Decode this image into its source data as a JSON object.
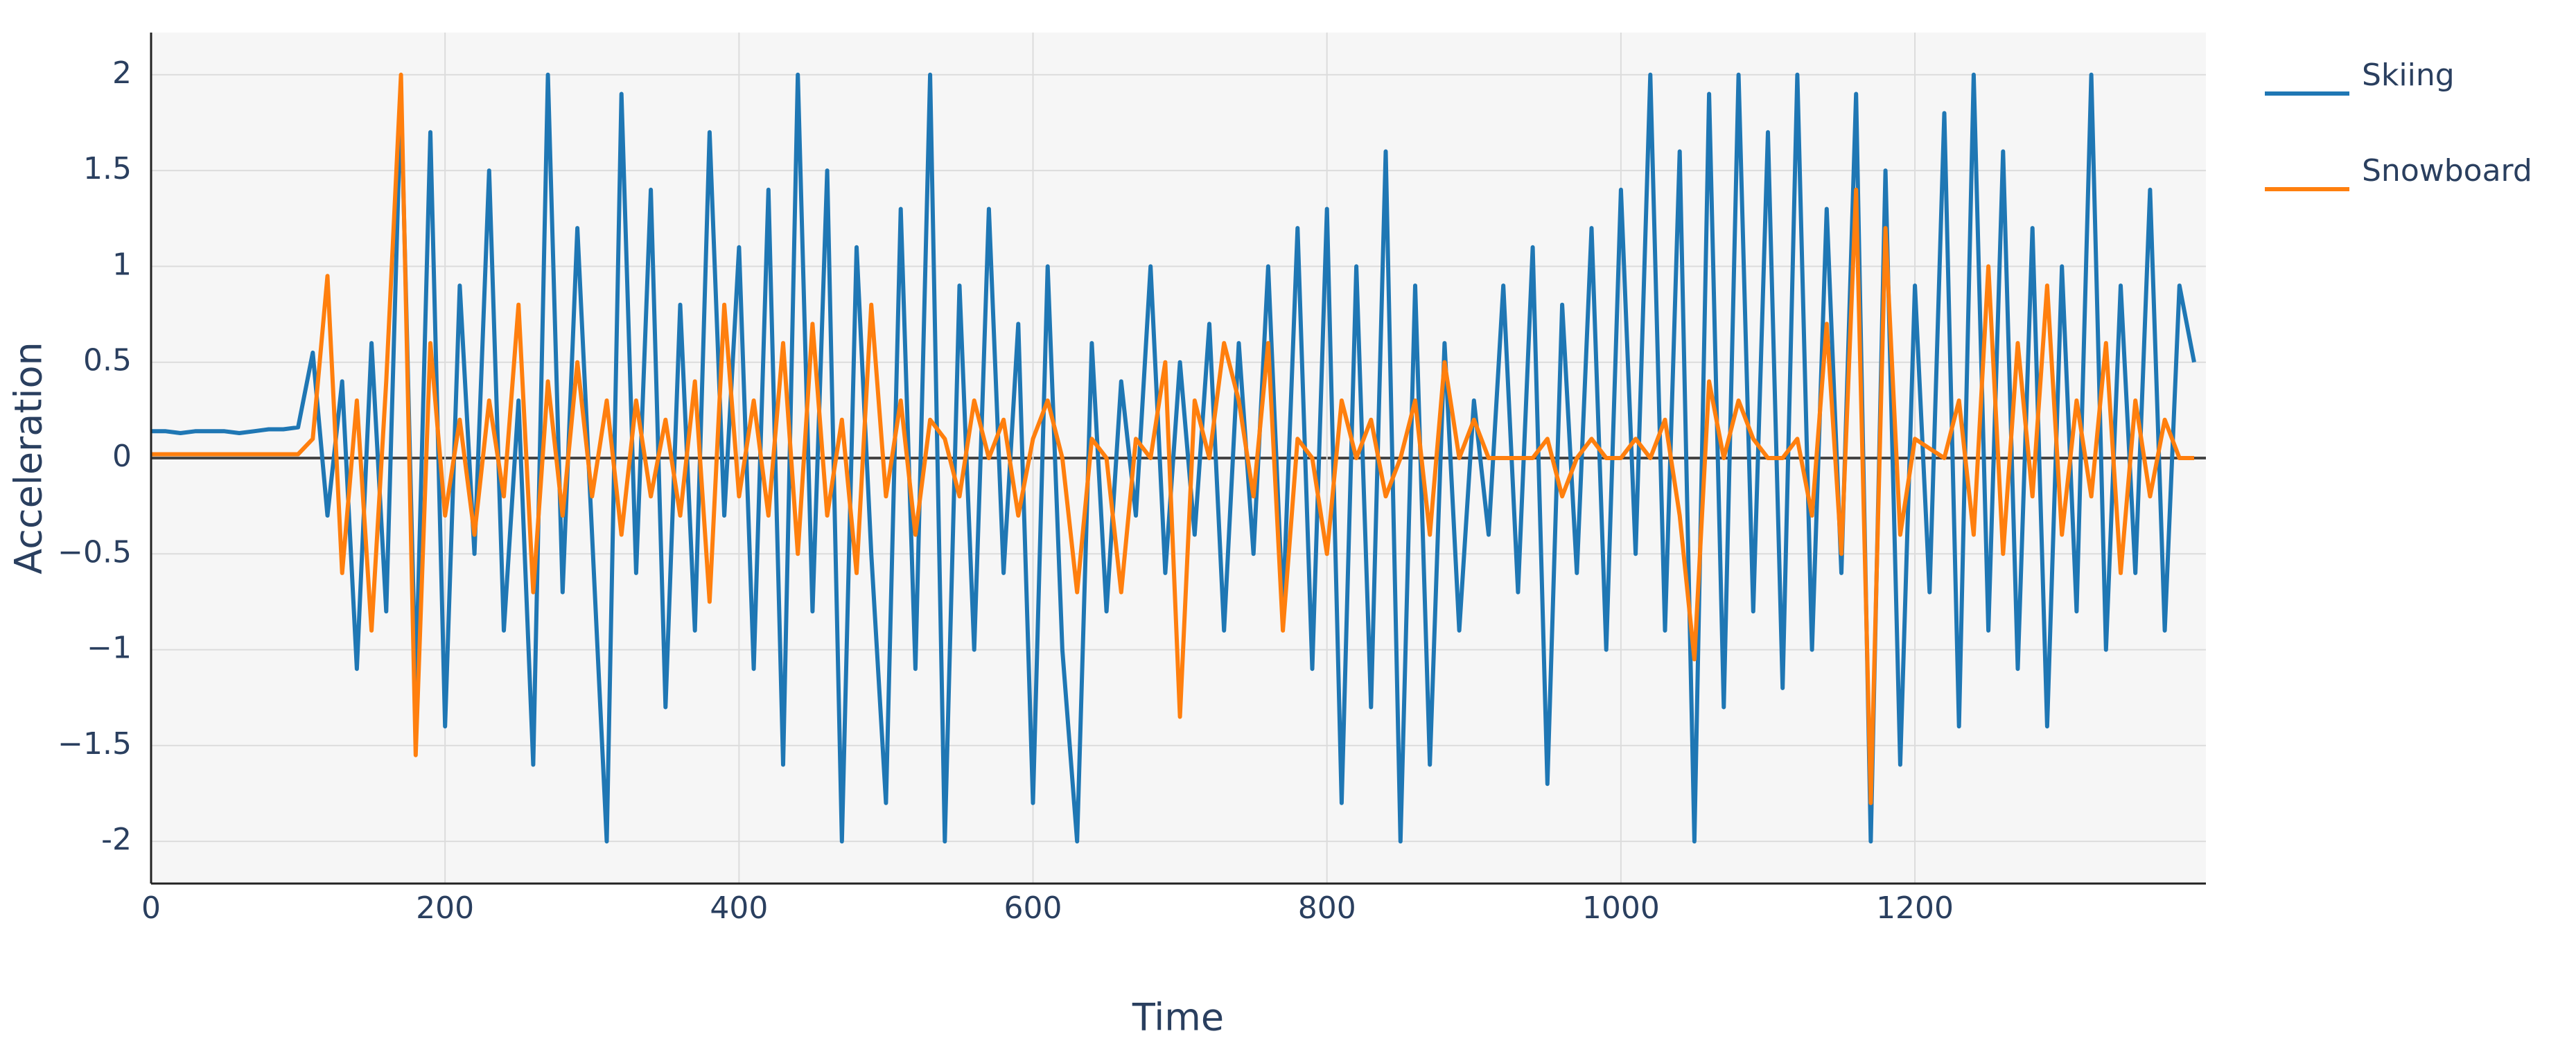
{
  "chart_data": {
    "type": "line",
    "x_label": "Time",
    "y_label": "Acceleration",
    "x": [
      0,
      10,
      20,
      30,
      40,
      50,
      60,
      70,
      80,
      90,
      100,
      110,
      120,
      130,
      140,
      150,
      160,
      170,
      180,
      190,
      200,
      210,
      220,
      230,
      240,
      250,
      260,
      270,
      280,
      290,
      300,
      310,
      320,
      330,
      340,
      350,
      360,
      370,
      380,
      390,
      400,
      410,
      420,
      430,
      440,
      450,
      460,
      470,
      480,
      490,
      500,
      510,
      520,
      530,
      540,
      550,
      560,
      570,
      580,
      590,
      600,
      610,
      620,
      630,
      640,
      650,
      660,
      670,
      680,
      690,
      700,
      710,
      720,
      730,
      740,
      750,
      760,
      770,
      780,
      790,
      800,
      810,
      820,
      830,
      840,
      850,
      860,
      870,
      880,
      890,
      900,
      910,
      920,
      930,
      940,
      950,
      960,
      970,
      980,
      990,
      1000,
      1010,
      1020,
      1030,
      1040,
      1050,
      1060,
      1070,
      1080,
      1090,
      1100,
      1110,
      1120,
      1130,
      1140,
      1150,
      1160,
      1170,
      1180,
      1190,
      1200,
      1210,
      1220,
      1230,
      1240,
      1250,
      1260,
      1270,
      1280,
      1290,
      1300,
      1310,
      1320,
      1330,
      1340,
      1350,
      1360,
      1370,
      1380,
      1390
    ],
    "series": [
      {
        "name": "Skiing",
        "color": "#1f77b4",
        "values": [
          0.14,
          0.14,
          0.13,
          0.14,
          0.14,
          0.14,
          0.13,
          0.14,
          0.15,
          0.15,
          0.16,
          0.55,
          -0.3,
          0.4,
          -1.1,
          0.6,
          -0.8,
          1.9,
          -1.2,
          1.7,
          -1.4,
          0.9,
          -0.5,
          1.5,
          -0.9,
          0.3,
          -1.6,
          2,
          -0.7,
          1.2,
          -0.4,
          -2,
          1.9,
          -0.6,
          1.4,
          -1.3,
          0.8,
          -0.9,
          1.7,
          -0.3,
          1.1,
          -1.1,
          1.4,
          -1.6,
          2,
          -0.8,
          1.5,
          -2,
          1.1,
          -0.5,
          -1.8,
          1.3,
          -1.1,
          2,
          -2,
          0.9,
          -1,
          1.3,
          -0.6,
          0.7,
          -1.8,
          1,
          -1,
          -2,
          0.6,
          -0.8,
          0.4,
          -0.3,
          1,
          -0.6,
          0.5,
          -0.4,
          0.7,
          -0.9,
          0.6,
          -0.5,
          1,
          -0.8,
          1.2,
          -1.1,
          1.3,
          -1.8,
          1,
          -1.3,
          1.6,
          -2,
          0.9,
          -1.6,
          0.6,
          -0.9,
          0.3,
          -0.4,
          0.9,
          -0.7,
          1.1,
          -1.7,
          0.8,
          -0.6,
          1.2,
          -1,
          1.4,
          -0.5,
          2,
          -0.9,
          1.6,
          -2,
          1.9,
          -1.3,
          2,
          -0.8,
          1.7,
          -1.2,
          2,
          -1,
          1.3,
          -0.6,
          1.9,
          -2,
          1.5,
          -1.6,
          0.9,
          -0.7,
          1.8,
          -1.4,
          2,
          -0.9,
          1.6,
          -1.1,
          1.2,
          -1.4,
          1,
          -0.8,
          2,
          -1,
          0.9,
          -0.6,
          1.4,
          -0.9,
          0.9,
          0.5
        ]
      },
      {
        "name": "Snowboard",
        "color": "#ff7f0e",
        "values": [
          0.02,
          0.02,
          0.02,
          0.02,
          0.02,
          0.02,
          0.02,
          0.02,
          0.02,
          0.02,
          0.02,
          0.1,
          0.95,
          -0.6,
          0.3,
          -0.9,
          0.4,
          2,
          -1.55,
          0.6,
          -0.3,
          0.2,
          -0.4,
          0.3,
          -0.2,
          0.8,
          -0.7,
          0.4,
          -0.3,
          0.5,
          -0.2,
          0.3,
          -0.4,
          0.3,
          -0.2,
          0.2,
          -0.3,
          0.4,
          -0.75,
          0.8,
          -0.2,
          0.3,
          -0.3,
          0.6,
          -0.5,
          0.7,
          -0.3,
          0.2,
          -0.6,
          0.8,
          -0.2,
          0.3,
          -0.4,
          0.2,
          0.1,
          -0.2,
          0.3,
          0,
          0.2,
          -0.3,
          0.1,
          0.3,
          0,
          -0.7,
          0.1,
          0,
          -0.7,
          0.1,
          0,
          0.5,
          -1.35,
          0.3,
          0,
          0.6,
          0.3,
          -0.2,
          0.6,
          -0.9,
          0.1,
          0,
          -0.5,
          0.3,
          0,
          0.2,
          -0.2,
          0,
          0.3,
          -0.4,
          0.5,
          0,
          0.2,
          0,
          0,
          0,
          0,
          0.1,
          -0.2,
          0,
          0.1,
          0,
          0,
          0.1,
          0,
          0.2,
          -0.3,
          -1.05,
          0.4,
          0,
          0.3,
          0.1,
          0,
          0,
          0.1,
          -0.3,
          0.7,
          -0.5,
          1.4,
          -1.8,
          1.2,
          -0.4,
          0.1,
          0.05,
          0,
          0.3,
          -0.4,
          1,
          -0.5,
          0.6,
          -0.2,
          0.9,
          -0.4,
          0.3,
          -0.2,
          0.6,
          -0.6,
          0.3,
          -0.2,
          0.2,
          0,
          0
        ]
      }
    ],
    "xlim": [
      0,
      1398
    ],
    "ylim": [
      -2.22,
      2.22
    ],
    "xticks": [
      0,
      200,
      400,
      600,
      800,
      1000,
      1200
    ],
    "yticks": [
      -2,
      {
        "value": -1.5,
        "label": "−1.5"
      },
      {
        "value": -1,
        "label": "−1"
      },
      {
        "value": -0.5,
        "label": "−0.5"
      },
      0,
      0.5,
      1,
      1.5,
      2
    ],
    "grid": true,
    "legend": "right"
  }
}
